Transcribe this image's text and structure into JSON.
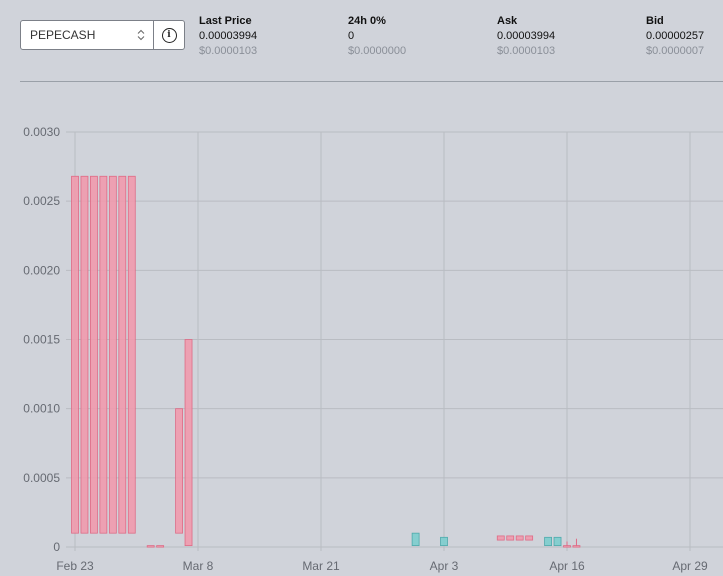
{
  "market": {
    "selected": "PEPECASH"
  },
  "stats": [
    {
      "label": "Last Price",
      "value": "0.00003994",
      "usd": "$0.0000103"
    },
    {
      "label": "24h 0%",
      "value": "0",
      "usd": "$0.0000000"
    },
    {
      "label": "Ask",
      "value": "0.00003994",
      "usd": "$0.0000103"
    },
    {
      "label": "Bid",
      "value": "0.00000257",
      "usd": "$0.0000007"
    }
  ],
  "colors": {
    "up_fill": "#7ccdcd",
    "up_stroke": "#4fa9ab",
    "down_fill": "#f09aad",
    "down_stroke": "#de6b86",
    "grid": "#b9bcc2"
  },
  "chart_data": {
    "type": "candlestick",
    "title": "",
    "xlabel": "",
    "ylabel": "",
    "ylim": [
      0,
      0.003
    ],
    "yticks": [
      "0",
      "0.0005",
      "0.0010",
      "0.0015",
      "0.0020",
      "0.0025",
      "0.0030"
    ],
    "xtick_labels": [
      "Feb 23",
      "Mar 8",
      "Mar 21",
      "Apr 3",
      "Apr 16",
      "Apr 29"
    ],
    "xtick_dates": [
      "2023-02-23",
      "2023-03-08",
      "2023-03-21",
      "2023-04-03",
      "2023-04-16",
      "2023-04-29"
    ],
    "grid": true,
    "candles": [
      {
        "date": "2023-02-23",
        "open": 0.00268,
        "close": 0.0001,
        "high": 0.00268,
        "low": 0.0001
      },
      {
        "date": "2023-02-24",
        "open": 0.00268,
        "close": 0.0001,
        "high": 0.00268,
        "low": 0.0001
      },
      {
        "date": "2023-02-25",
        "open": 0.00268,
        "close": 0.0001,
        "high": 0.00268,
        "low": 0.0001
      },
      {
        "date": "2023-02-26",
        "open": 0.00268,
        "close": 0.0001,
        "high": 0.00268,
        "low": 0.0001
      },
      {
        "date": "2023-02-27",
        "open": 0.00268,
        "close": 0.0001,
        "high": 0.00268,
        "low": 0.0001
      },
      {
        "date": "2023-02-28",
        "open": 0.00268,
        "close": 0.0001,
        "high": 0.00268,
        "low": 0.0001
      },
      {
        "date": "2023-03-01",
        "open": 0.00268,
        "close": 0.0001,
        "high": 0.00268,
        "low": 0.0001
      },
      {
        "date": "2023-03-03",
        "open": 1e-05,
        "close": 5e-06,
        "high": 1e-05,
        "low": 5e-06
      },
      {
        "date": "2023-03-04",
        "open": 1e-05,
        "close": 5e-06,
        "high": 1e-05,
        "low": 5e-06
      },
      {
        "date": "2023-03-06",
        "open": 0.001,
        "close": 0.0001,
        "high": 0.001,
        "low": 0.0001
      },
      {
        "date": "2023-03-07",
        "open": 0.0015,
        "close": 1e-05,
        "high": 0.0015,
        "low": 1e-05
      },
      {
        "date": "2023-03-31",
        "open": 1e-05,
        "close": 0.0001,
        "high": 0.0001,
        "low": 1e-05
      },
      {
        "date": "2023-04-03",
        "open": 1e-05,
        "close": 7e-05,
        "high": 7e-05,
        "low": 1e-05
      },
      {
        "date": "2023-04-09",
        "open": 8e-05,
        "close": 5e-05,
        "high": 8e-05,
        "low": 5e-05
      },
      {
        "date": "2023-04-10",
        "open": 8e-05,
        "close": 5e-05,
        "high": 8e-05,
        "low": 5e-05
      },
      {
        "date": "2023-04-11",
        "open": 8e-05,
        "close": 5e-05,
        "high": 8e-05,
        "low": 5e-05
      },
      {
        "date": "2023-04-12",
        "open": 8e-05,
        "close": 5e-05,
        "high": 8e-05,
        "low": 5e-05
      },
      {
        "date": "2023-04-14",
        "open": 1e-05,
        "close": 7e-05,
        "high": 7e-05,
        "low": 1e-05
      },
      {
        "date": "2023-04-15",
        "open": 1e-05,
        "close": 7e-05,
        "high": 7e-05,
        "low": 1e-05
      },
      {
        "date": "2023-04-16",
        "open": 1e-05,
        "close": 5e-06,
        "high": 4e-05,
        "low": 5e-06
      },
      {
        "date": "2023-04-17",
        "open": 1e-05,
        "close": 5e-06,
        "high": 6e-05,
        "low": 5e-06
      }
    ]
  }
}
